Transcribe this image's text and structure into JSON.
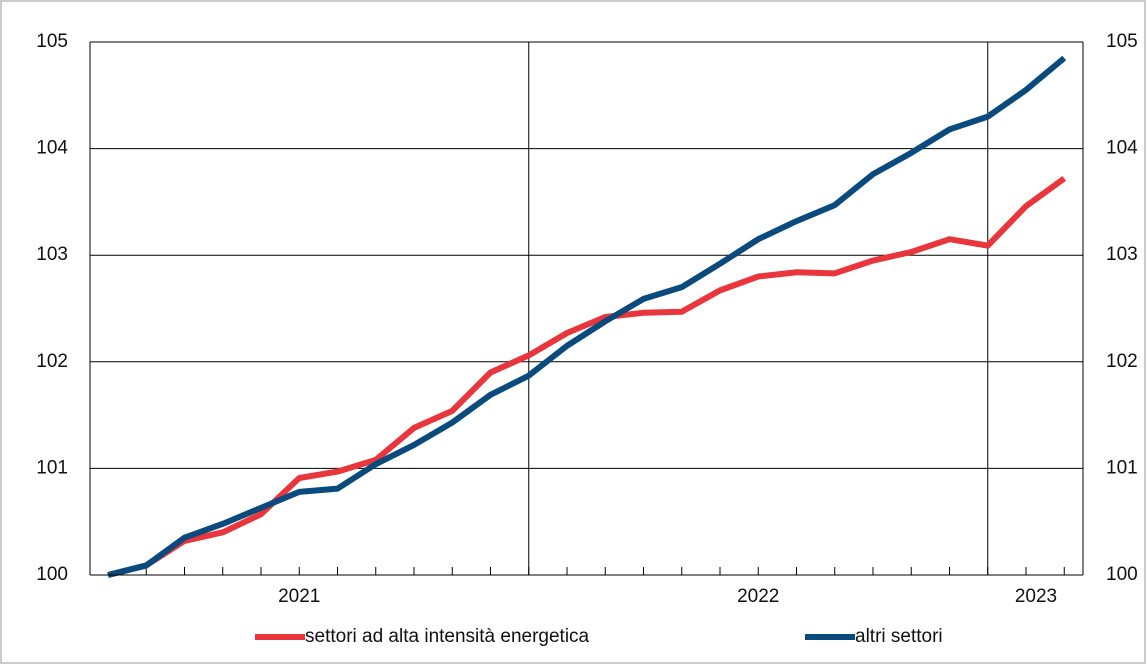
{
  "chart_data": {
    "type": "line",
    "categories": [
      null,
      null,
      null,
      null,
      null,
      "2021",
      null,
      null,
      null,
      null,
      null,
      null,
      null,
      null,
      null,
      null,
      null,
      "2022",
      null,
      null,
      null,
      null,
      null,
      null,
      "2023",
      null
    ],
    "year_separators": [
      11,
      23
    ],
    "series": [
      {
        "name": "settori ad alta intensità energetica",
        "color": "#e8363c",
        "values": [
          100,
          100.09,
          100.32,
          100.4,
          100.57,
          100.91,
          100.97,
          101.08,
          101.38,
          101.54,
          101.9,
          102.06,
          102.27,
          102.42,
          102.46,
          102.47,
          102.67,
          102.8,
          102.84,
          102.83,
          102.95,
          103.03,
          103.15,
          103.09,
          103.46,
          103.72
        ]
      },
      {
        "name": "altri settori",
        "color": "#0b4a7d",
        "values": [
          100,
          100.09,
          100.35,
          100.48,
          100.63,
          100.78,
          100.81,
          101.04,
          101.22,
          101.43,
          101.69,
          101.87,
          102.15,
          102.38,
          102.59,
          102.7,
          102.92,
          103.15,
          103.32,
          103.47,
          103.76,
          103.96,
          104.18,
          104.3,
          104.55,
          104.85
        ]
      }
    ],
    "ylim": [
      100,
      105
    ],
    "yticks": [
      100,
      101,
      102,
      103,
      104,
      105
    ],
    "grid": true,
    "legend": "bottom"
  }
}
